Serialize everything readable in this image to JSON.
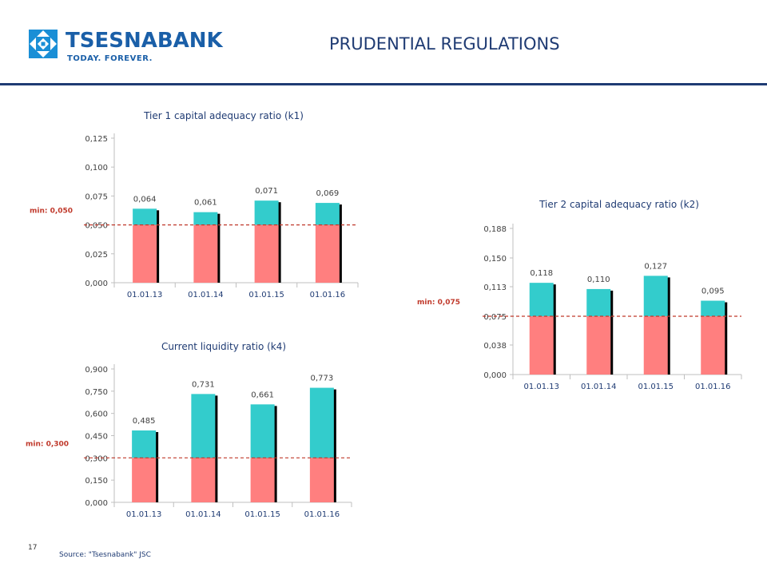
{
  "header": {
    "brand": "TSESNABANK",
    "tagline": "TODAY. FOREVER.",
    "title": "PRUDENTIAL REGULATIONS"
  },
  "footer": {
    "page_number": "17",
    "source": "Source: \"Tsesnabank\" JSC"
  },
  "colors": {
    "base": "#ff7f7f",
    "excess": "#33cccc",
    "min_line": "#c0392b",
    "accent": "#1f3b73"
  },
  "chart_data": [
    {
      "type": "bar",
      "title": "Tier 1 capital adequacy ratio (k1)",
      "categories": [
        "01.01.13",
        "01.01.14",
        "01.01.15",
        "01.01.16"
      ],
      "values": [
        0.064,
        0.061,
        0.071,
        0.069
      ],
      "value_labels": [
        "0,064",
        "0,061",
        "0,071",
        "0,069"
      ],
      "minimum": 0.05,
      "minimum_label": "min:  0,050",
      "ylim": [
        0,
        0.125
      ],
      "yticks": [
        0,
        0.025,
        0.05,
        0.075,
        0.1,
        0.125
      ],
      "ytick_labels": [
        "0,000",
        "0,025",
        "0,050",
        "0,075",
        "0,100",
        "0,125"
      ]
    },
    {
      "type": "bar",
      "title": "Tier 2 capital adequacy ratio (k2)",
      "categories": [
        "01.01.13",
        "01.01.14",
        "01.01.15",
        "01.01.16"
      ],
      "values": [
        0.118,
        0.11,
        0.127,
        0.095
      ],
      "value_labels": [
        "0,118",
        "0,110",
        "0,127",
        "0,095"
      ],
      "minimum": 0.075,
      "minimum_label": "min:  0,075",
      "ylim": [
        0,
        0.188
      ],
      "yticks": [
        0,
        0.038,
        0.075,
        0.113,
        0.15,
        0.188
      ],
      "ytick_labels": [
        "0,000",
        "0,038",
        "0,075",
        "0,113",
        "0,150",
        "0,188"
      ]
    },
    {
      "type": "bar",
      "title": "Current liquidity ratio (k4)",
      "categories": [
        "01.01.13",
        "01.01.14",
        "01.01.15",
        "01.01.16"
      ],
      "values": [
        0.485,
        0.731,
        0.661,
        0.773
      ],
      "value_labels": [
        "0,485",
        "0,731",
        "0,661",
        "0,773"
      ],
      "minimum": 0.3,
      "minimum_label": "min: 0,300",
      "ylim": [
        0,
        0.9
      ],
      "yticks": [
        0,
        0.15,
        0.3,
        0.45,
        0.6,
        0.75,
        0.9
      ],
      "ytick_labels": [
        "0,000",
        "0,150",
        "0,300",
        "0,450",
        "0,600",
        "0,750",
        "0,900"
      ]
    }
  ]
}
